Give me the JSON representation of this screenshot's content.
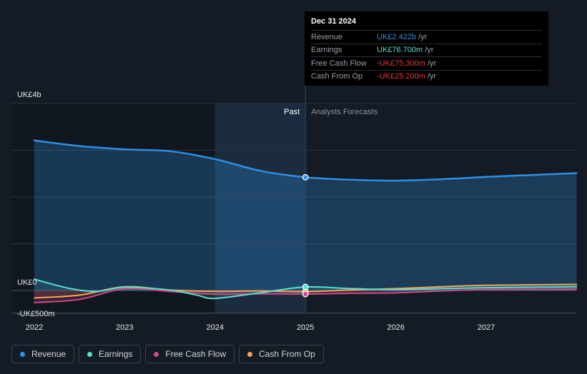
{
  "tooltip": {
    "date": "Dec 31 2024",
    "rows": [
      {
        "label": "Revenue",
        "value": "UK£2.422b",
        "unit": "/yr",
        "color": "#3b8fd9"
      },
      {
        "label": "Earnings",
        "value": "UK£76.700m",
        "unit": "/yr",
        "color": "#56e0cf"
      },
      {
        "label": "Free Cash Flow",
        "value": "-UK£75.300m",
        "unit": "/yr",
        "color": "#e5393c"
      },
      {
        "label": "Cash From Op",
        "value": "-UK£25.200m",
        "unit": "/yr",
        "color": "#e5393c"
      }
    ]
  },
  "past_label": "Past",
  "forecast_label": "Analysts Forecasts",
  "legend": [
    {
      "label": "Revenue",
      "color": "#2f8fe4"
    },
    {
      "label": "Earnings",
      "color": "#56e0cf"
    },
    {
      "label": "Free Cash Flow",
      "color": "#d04a89"
    },
    {
      "label": "Cash From Op",
      "color": "#f0a85a"
    }
  ],
  "chart_data": {
    "type": "area",
    "y_unit": "UK£ millions",
    "y_tick_labels": [
      "UK£4b",
      "UK£0",
      "-UK£500m"
    ],
    "y_ticks": [
      4000,
      0,
      -500
    ],
    "ylim": [
      -500,
      4000
    ],
    "x_tick_labels": [
      "2022",
      "2023",
      "2024",
      "2025",
      "2026",
      "2027"
    ],
    "x_ticks": [
      2022,
      2023,
      2024,
      2025,
      2026,
      2027
    ],
    "xlim": [
      2021.75,
      2028.0
    ],
    "past_end": 2025.0,
    "highlight_start": 2024.0,
    "highlight_end": 2025.0,
    "series": [
      {
        "name": "Revenue",
        "color": "#2f8fe4",
        "points": [
          [
            2022.0,
            3210
          ],
          [
            2022.5,
            3090
          ],
          [
            2023.0,
            3020
          ],
          [
            2023.5,
            2980
          ],
          [
            2024.0,
            2810
          ],
          [
            2024.5,
            2560
          ],
          [
            2025.0,
            2422
          ],
          [
            2025.5,
            2370
          ],
          [
            2026.0,
            2350
          ],
          [
            2026.5,
            2380
          ],
          [
            2027.0,
            2430
          ],
          [
            2027.5,
            2470
          ],
          [
            2028.0,
            2510
          ]
        ]
      },
      {
        "name": "Earnings",
        "color": "#56e0cf",
        "points": [
          [
            2022.0,
            240
          ],
          [
            2022.4,
            40
          ],
          [
            2022.7,
            -20
          ],
          [
            2023.0,
            70
          ],
          [
            2023.5,
            10
          ],
          [
            2023.8,
            -100
          ],
          [
            2024.0,
            -170
          ],
          [
            2024.5,
            -50
          ],
          [
            2025.0,
            76.7
          ],
          [
            2025.5,
            40
          ],
          [
            2026.0,
            20
          ],
          [
            2026.5,
            40
          ],
          [
            2027.0,
            60
          ],
          [
            2028.0,
            80
          ]
        ]
      },
      {
        "name": "Free Cash Flow",
        "color": "#d04a89",
        "points": [
          [
            2022.0,
            -260
          ],
          [
            2022.5,
            -190
          ],
          [
            2023.0,
            40
          ],
          [
            2023.5,
            -20
          ],
          [
            2024.0,
            -80
          ],
          [
            2024.5,
            -70
          ],
          [
            2025.0,
            -75.3
          ],
          [
            2025.5,
            -60
          ],
          [
            2026.0,
            -50
          ],
          [
            2026.5,
            -10
          ],
          [
            2027.0,
            20
          ],
          [
            2028.0,
            30
          ]
        ]
      },
      {
        "name": "Cash From Op",
        "color": "#f0a85a",
        "points": [
          [
            2022.0,
            -160
          ],
          [
            2022.5,
            -100
          ],
          [
            2023.0,
            80
          ],
          [
            2023.5,
            10
          ],
          [
            2024.0,
            -20
          ],
          [
            2024.5,
            -10
          ],
          [
            2025.0,
            -25.2
          ],
          [
            2025.5,
            10
          ],
          [
            2026.0,
            40
          ],
          [
            2026.5,
            80
          ],
          [
            2027.0,
            110
          ],
          [
            2028.0,
            130
          ]
        ]
      }
    ]
  }
}
